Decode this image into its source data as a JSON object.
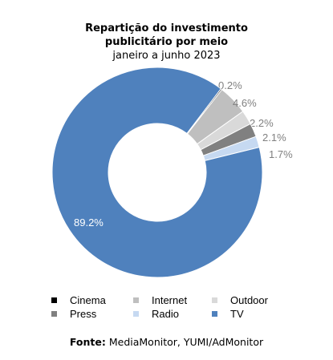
{
  "chart_data": {
    "type": "pie",
    "variant": "donut",
    "title": "Repartição do investimento publicitário por meio",
    "title_lines": [
      "Repartição do investimento",
      "publicitário por meio"
    ],
    "subtitle": "janeiro a junho 2023",
    "slices": [
      {
        "name": "Cinema",
        "value": 0.2,
        "label": "0.2%",
        "color": "#000000",
        "label_color": "#808080"
      },
      {
        "name": "Internet",
        "value": 4.6,
        "label": "4.6%",
        "color": "#bfbfbf",
        "label_color": "#808080"
      },
      {
        "name": "Outdoor",
        "value": 2.2,
        "label": "2.2%",
        "color": "#d9d9d9",
        "label_color": "#808080"
      },
      {
        "name": "Press",
        "value": 2.1,
        "label": "2.1%",
        "color": "#808080",
        "label_color": "#808080"
      },
      {
        "name": "Radio",
        "value": 1.7,
        "label": "1.7%",
        "color": "#c6d9f1",
        "label_color": "#808080"
      },
      {
        "name": "TV",
        "value": 89.2,
        "label": "89.2%",
        "color": "#4f81bd",
        "label_color": "#ffffff"
      }
    ],
    "legend": [
      "Cinema",
      "Internet",
      "Outdoor",
      "Press",
      "Radio",
      "TV"
    ],
    "legend_position": "bottom"
  },
  "footer": {
    "label": "Fonte:",
    "text": " MediaMonitor, YUMI/AdMonitor"
  }
}
